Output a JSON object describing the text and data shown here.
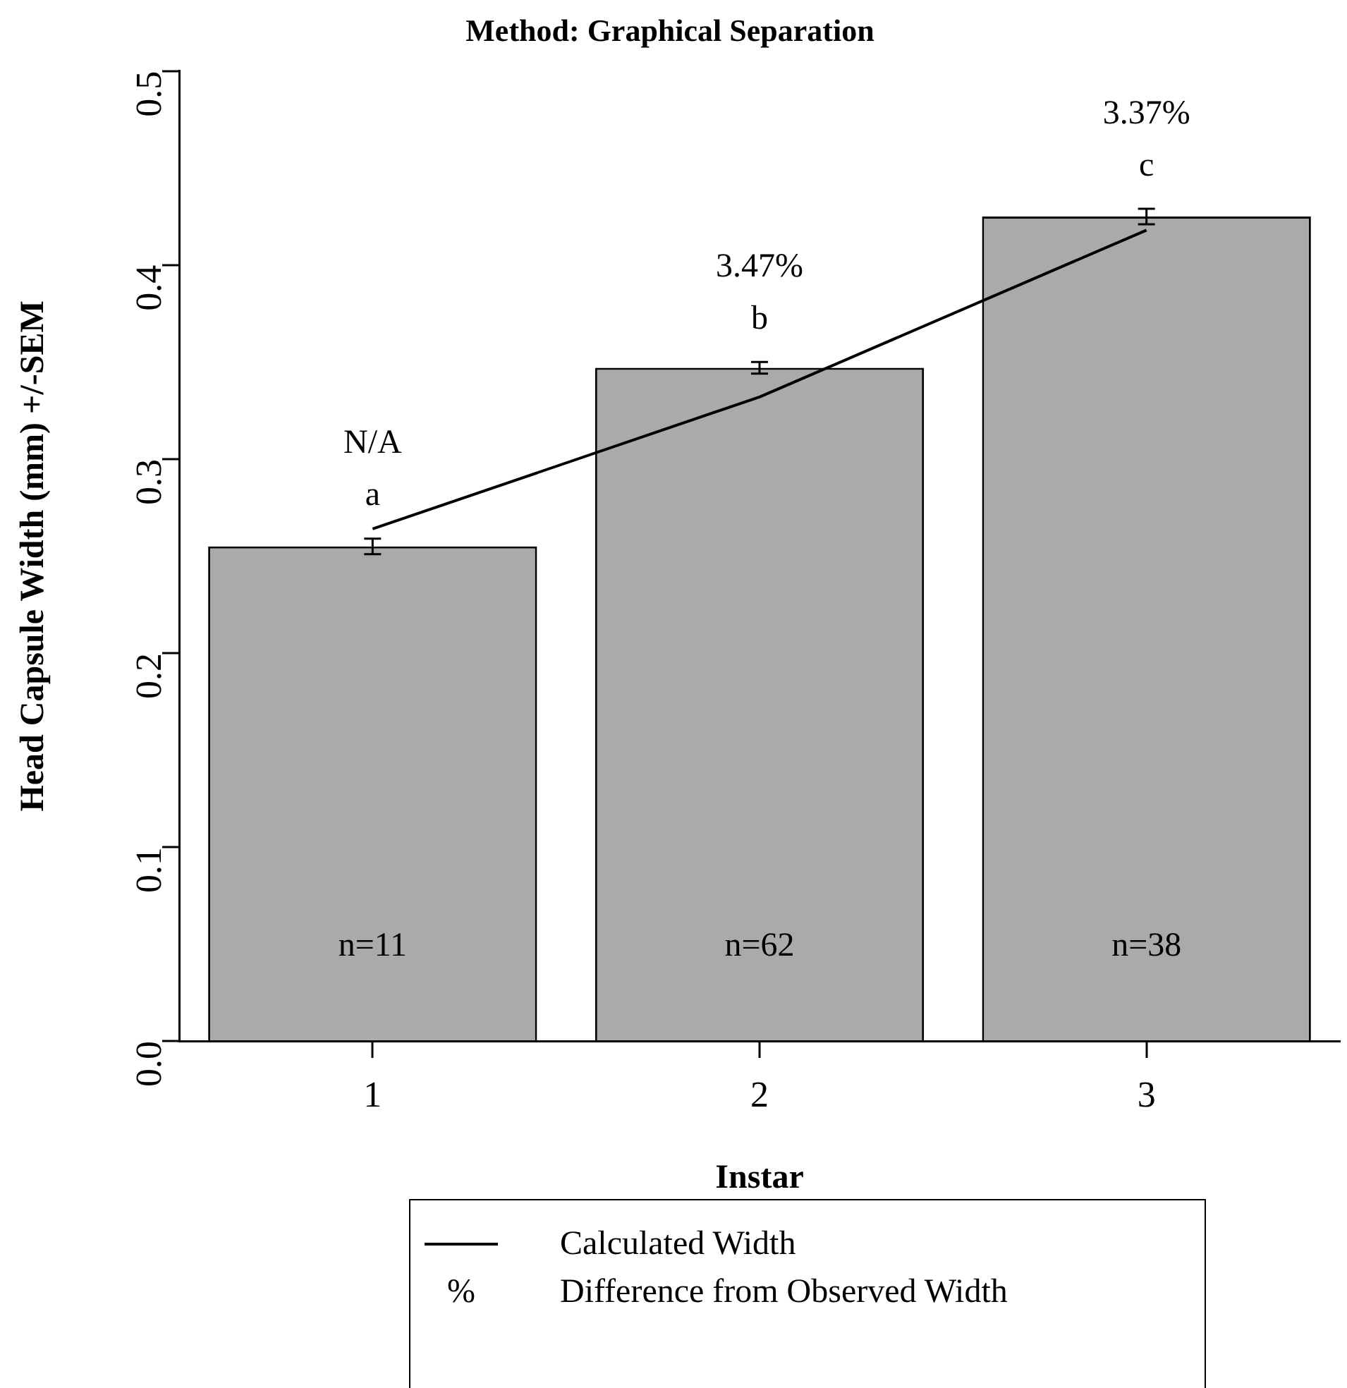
{
  "chart_data": {
    "type": "bar",
    "title": "Method: Graphical Separation",
    "xlabel": "Instar",
    "ylabel": "Head Capsule Width (mm) +/-SEM",
    "categories": [
      "1",
      "2",
      "3"
    ],
    "series": [
      {
        "color": "#aaaaaa",
        "values": [
          0.255,
          0.347,
          0.425
        ],
        "errors": [
          0.004,
          0.003,
          0.004
        ]
      },
      {
        "type": "line",
        "name": "Calculated Width",
        "color": "#000000",
        "values": [
          0.264,
          0.332,
          0.418
        ]
      }
    ],
    "ylim": [
      0,
      0.5
    ],
    "yticks": [
      {
        "value": 0,
        "label": "0.0"
      },
      0.1,
      0.2,
      0.3,
      0.4,
      0.5
    ],
    "grid": false,
    "legend": "bottom",
    "marker": "none",
    "line_style": "solid",
    "annotations": [
      "N/A",
      "a",
      "3.47%",
      "b",
      "3.37%",
      "c",
      "n=11",
      "n=62",
      "n=38",
      "% Difference from Observed Width"
    ]
  }
}
